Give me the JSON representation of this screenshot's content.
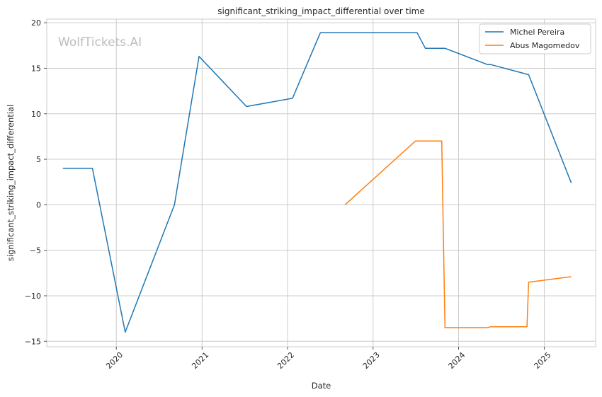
{
  "watermark": "WolfTickets.AI",
  "chart_data": {
    "type": "line",
    "title": "significant_striking_impact_differential over time",
    "xlabel": "Date",
    "ylabel": "significant_striking_impact_differential",
    "xlim": [
      "2019-03-10",
      "2025-08-08"
    ],
    "ylim": [
      -15.6,
      20.4
    ],
    "x_ticks": [
      "2020-01-01",
      "2021-01-01",
      "2022-01-01",
      "2023-01-01",
      "2024-01-01",
      "2025-01-01"
    ],
    "x_tick_labels": [
      "2020",
      "2021",
      "2022",
      "2023",
      "2024",
      "2025"
    ],
    "y_ticks": [
      20,
      15,
      10,
      5,
      0,
      -5,
      -10,
      -15
    ],
    "y_tick_labels": [
      "20",
      "15",
      "10",
      "5",
      "0",
      "−5",
      "−10",
      "−15"
    ],
    "grid": true,
    "legend_position": "top-right",
    "series": [
      {
        "name": "Michel Pereira",
        "color": "#1f77b4",
        "points": [
          [
            "2019-05-18",
            4.0
          ],
          [
            "2019-09-21",
            4.0
          ],
          [
            "2020-02-08",
            -14.0
          ],
          [
            "2020-09-05",
            0.0
          ],
          [
            "2020-12-19",
            16.3
          ],
          [
            "2021-07-10",
            10.8
          ],
          [
            "2022-01-22",
            11.7
          ],
          [
            "2022-05-21",
            18.9
          ],
          [
            "2023-07-08",
            18.9
          ],
          [
            "2023-08-12",
            17.2
          ],
          [
            "2023-11-04",
            17.2
          ],
          [
            "2024-05-04",
            15.4
          ],
          [
            "2024-05-18",
            15.4
          ],
          [
            "2024-10-26",
            14.3
          ],
          [
            "2025-04-26",
            2.4
          ]
        ]
      },
      {
        "name": "Abus Magomedov",
        "color": "#ff7f0e",
        "points": [
          [
            "2022-09-03",
            0.0
          ],
          [
            "2023-07-01",
            7.0
          ],
          [
            "2023-10-21",
            7.0
          ],
          [
            "2023-11-04",
            -13.5
          ],
          [
            "2024-05-04",
            -13.5
          ],
          [
            "2024-05-18",
            -13.4
          ],
          [
            "2024-10-19",
            -13.4
          ],
          [
            "2024-10-26",
            -8.5
          ],
          [
            "2025-04-26",
            -7.9
          ]
        ]
      }
    ]
  }
}
